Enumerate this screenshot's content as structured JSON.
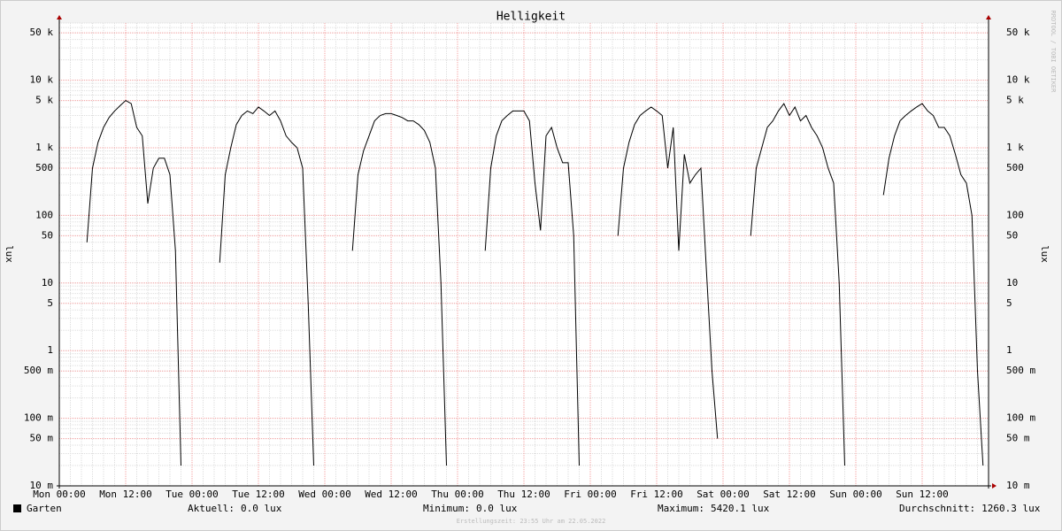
{
  "chart_data": {
    "type": "line",
    "title": "Helligkeit",
    "y_label": "lux",
    "log_scale": true,
    "grid": true,
    "watermark": "RRDTOOL / TOBI OETIKER",
    "x": [
      0,
      1,
      2,
      3,
      4,
      5,
      6,
      7,
      8,
      9,
      10,
      11,
      12,
      13,
      14,
      15,
      16,
      17,
      18,
      19,
      20,
      21,
      22,
      23,
      24,
      25,
      26,
      27,
      28,
      29,
      30,
      31,
      32,
      33,
      34,
      35,
      36,
      37,
      38,
      39,
      40,
      41,
      42,
      43,
      44,
      45,
      46,
      47,
      48,
      49,
      50,
      51,
      52,
      53,
      54,
      55,
      56,
      57,
      58,
      59,
      60,
      61,
      62,
      63,
      64,
      65,
      66,
      67,
      68,
      69,
      70,
      71,
      72,
      73,
      74,
      75,
      76,
      77,
      78,
      79,
      80,
      81,
      82,
      83,
      84,
      85,
      86,
      87,
      88,
      89,
      90,
      91,
      92,
      93,
      94,
      95,
      96,
      97,
      98,
      99,
      100,
      101,
      102,
      103,
      104,
      105,
      106,
      107,
      108,
      109,
      110,
      111,
      112,
      113,
      114,
      115,
      116,
      117,
      118,
      119,
      120,
      121,
      122,
      123,
      124,
      125,
      126,
      127,
      128,
      129,
      130,
      131,
      132,
      133,
      134,
      135,
      136,
      137,
      138,
      139,
      140,
      141,
      142,
      143,
      144,
      145,
      146,
      147,
      148,
      149,
      150,
      151,
      152,
      153,
      154,
      155,
      156,
      157,
      158,
      159,
      160,
      161,
      162,
      163,
      164,
      165,
      166,
      167
    ],
    "series": [
      {
        "name": "Garten",
        "color": "#000000",
        "values": [
          null,
          null,
          null,
          null,
          null,
          40,
          500,
          1200,
          2000,
          2800,
          3500,
          4200,
          5000,
          4500,
          2000,
          1500,
          150,
          500,
          700,
          700,
          400,
          30,
          0.02,
          null,
          null,
          null,
          null,
          null,
          null,
          20,
          400,
          1000,
          2200,
          3000,
          3500,
          3200,
          4000,
          3500,
          3000,
          3500,
          2500,
          1500,
          1200,
          1000,
          500,
          5,
          0.02,
          null,
          null,
          null,
          null,
          null,
          null,
          30,
          400,
          900,
          1500,
          2500,
          3000,
          3200,
          3200,
          3000,
          2800,
          2500,
          2500,
          2200,
          1800,
          1200,
          500,
          10,
          0.02,
          null,
          null,
          null,
          null,
          null,
          null,
          30,
          500,
          1500,
          2500,
          3000,
          3500,
          3500,
          3500,
          2500,
          300,
          60,
          1500,
          2000,
          1000,
          600,
          600,
          50,
          0.02,
          null,
          null,
          null,
          null,
          null,
          null,
          50,
          500,
          1200,
          2200,
          3000,
          3500,
          4000,
          3500,
          3000,
          500,
          2000,
          30,
          800,
          300,
          400,
          500,
          15,
          0.5,
          0.05,
          null,
          null,
          null,
          null,
          null,
          50,
          500,
          1000,
          2000,
          2500,
          3500,
          4500,
          3000,
          4000,
          2500,
          3000,
          2000,
          1500,
          1000,
          500,
          300,
          10,
          0.02,
          null,
          null,
          null,
          null,
          null,
          null,
          200,
          700,
          1500,
          2500,
          3000,
          3500,
          4000,
          4500,
          3500,
          3000,
          2000,
          2000,
          1500,
          800,
          400,
          300,
          100,
          0.5,
          0.02
        ]
      }
    ],
    "xlim": [
      0,
      168
    ],
    "xticks": [
      {
        "value": 0,
        "label": "Mon 00:00"
      },
      {
        "value": 12,
        "label": "Mon 12:00"
      },
      {
        "value": 24,
        "label": "Tue 00:00"
      },
      {
        "value": 36,
        "label": "Tue 12:00"
      },
      {
        "value": 48,
        "label": "Wed 00:00"
      },
      {
        "value": 60,
        "label": "Wed 12:00"
      },
      {
        "value": 72,
        "label": "Thu 00:00"
      },
      {
        "value": 84,
        "label": "Thu 12:00"
      },
      {
        "value": 96,
        "label": "Fri 00:00"
      },
      {
        "value": 108,
        "label": "Fri 12:00"
      },
      {
        "value": 120,
        "label": "Sat 00:00"
      },
      {
        "value": 132,
        "label": "Sat 12:00"
      },
      {
        "value": 144,
        "label": "Sun 00:00"
      },
      {
        "value": 156,
        "label": "Sun 12:00"
      }
    ],
    "ylim": [
      0.01,
      70000
    ],
    "yticks": [
      {
        "value": 0.01,
        "label": "10 m"
      },
      {
        "value": 0.05,
        "label": "50 m"
      },
      {
        "value": 0.1,
        "label": "100 m"
      },
      {
        "value": 0.5,
        "label": "500 m"
      },
      1,
      5,
      10,
      50,
      100,
      500,
      {
        "value": 1000,
        "label": "1 k"
      },
      {
        "value": 5000,
        "label": "5 k"
      },
      {
        "value": 10000,
        "label": "10 k"
      },
      {
        "value": 50000,
        "label": "50 k"
      }
    ],
    "stats": [
      {
        "label": "Aktuell:",
        "value": "0.0 lux"
      },
      {
        "label": "Minimum:",
        "value": "0.0 lux"
      },
      {
        "label": "Maximum:",
        "value": "5420.1 lux"
      },
      {
        "label": "Durchschnitt:",
        "value": "1260.3 lux"
      }
    ],
    "footer": "Erstellungszeit: 23:55 Uhr am 22.05.2022"
  }
}
